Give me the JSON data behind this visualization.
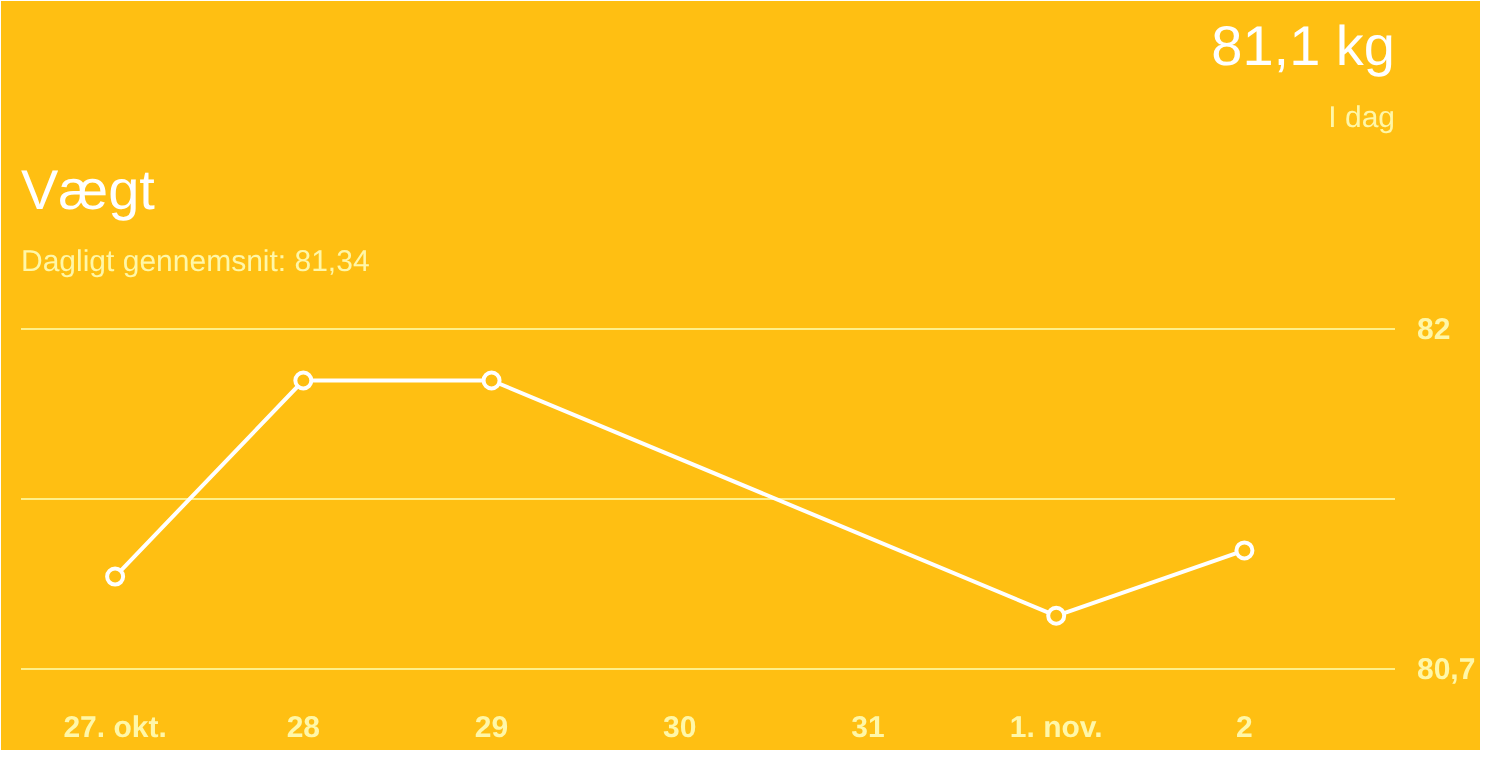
{
  "chart_data": {
    "type": "line",
    "title": "Vægt",
    "subtitle": "Dagligt gennemsnit: 81,34",
    "annotations": [
      "81,1 kg",
      "I dag"
    ],
    "categories": [
      "27. okt.",
      "28",
      "29",
      "30",
      "31",
      "1. nov.",
      "2"
    ],
    "series": [
      {
        "color": "#ffffff",
        "values": [
          81.05,
          81.8,
          81.8,
          null,
          null,
          80.9,
          81.15
        ]
      }
    ],
    "ylim": [
      80.62,
      82.15
    ],
    "yticks": [
      {
        "value": 80.7,
        "label": "80,7"
      },
      {
        "value": 81.35,
        "label": null
      },
      {
        "value": 82,
        "label": "82"
      }
    ],
    "grid": "y",
    "marker": "circle",
    "line_style": "solid"
  }
}
